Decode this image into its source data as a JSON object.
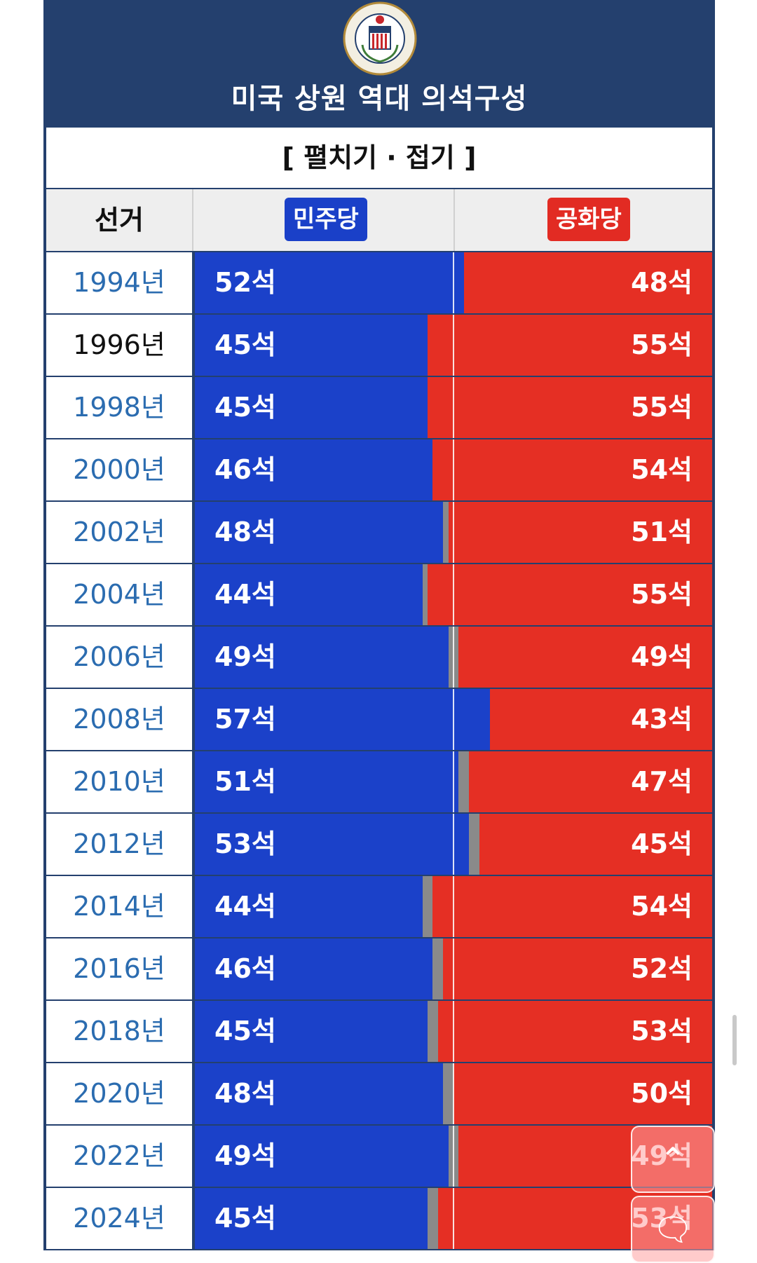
{
  "header": {
    "title": "미국 상원 역대 의석구성",
    "seal": "United States Senate seal",
    "seal_text": "UNITED STATES SENATE"
  },
  "toggle_label": "[ 펼치기 · 접기 ]",
  "columns": {
    "election": "선거",
    "dem": "민주당",
    "rep": "공화당"
  },
  "colors": {
    "dem": "#1b41c9",
    "rep": "#e52f24",
    "other": "#8a8a8a",
    "header_bg": "#24406e"
  },
  "rows": [
    {
      "year": "1994년",
      "dem": "52석",
      "rep": "48석",
      "dem_seats": 52,
      "other_seats": 0,
      "rep_seats": 48
    },
    {
      "year": "1996년",
      "dem": "45석",
      "rep": "55석",
      "dem_seats": 45,
      "other_seats": 0,
      "rep_seats": 55
    },
    {
      "year": "1998년",
      "dem": "45석",
      "rep": "55석",
      "dem_seats": 45,
      "other_seats": 0,
      "rep_seats": 55
    },
    {
      "year": "2000년",
      "dem": "46석",
      "rep": "54석",
      "dem_seats": 46,
      "other_seats": 0,
      "rep_seats": 54
    },
    {
      "year": "2002년",
      "dem": "48석",
      "rep": "51석",
      "dem_seats": 48,
      "other_seats": 1,
      "rep_seats": 51
    },
    {
      "year": "2004년",
      "dem": "44석",
      "rep": "55석",
      "dem_seats": 44,
      "other_seats": 1,
      "rep_seats": 55
    },
    {
      "year": "2006년",
      "dem": "49석",
      "rep": "49석",
      "dem_seats": 49,
      "other_seats": 2,
      "rep_seats": 49
    },
    {
      "year": "2008년",
      "dem": "57석",
      "rep": "43석",
      "dem_seats": 57,
      "other_seats": 0,
      "rep_seats": 43
    },
    {
      "year": "2010년",
      "dem": "51석",
      "rep": "47석",
      "dem_seats": 51,
      "other_seats": 2,
      "rep_seats": 47
    },
    {
      "year": "2012년",
      "dem": "53석",
      "rep": "45석",
      "dem_seats": 53,
      "other_seats": 2,
      "rep_seats": 45
    },
    {
      "year": "2014년",
      "dem": "44석",
      "rep": "54석",
      "dem_seats": 44,
      "other_seats": 2,
      "rep_seats": 54
    },
    {
      "year": "2016년",
      "dem": "46석",
      "rep": "52석",
      "dem_seats": 46,
      "other_seats": 2,
      "rep_seats": 52
    },
    {
      "year": "2018년",
      "dem": "45석",
      "rep": "53석",
      "dem_seats": 45,
      "other_seats": 2,
      "rep_seats": 53
    },
    {
      "year": "2020년",
      "dem": "48석",
      "rep": "50석",
      "dem_seats": 48,
      "other_seats": 2,
      "rep_seats": 50
    },
    {
      "year": "2022년",
      "dem": "49석",
      "rep": "49석",
      "dem_seats": 49,
      "other_seats": 2,
      "rep_seats": 49
    },
    {
      "year": "2024년",
      "dem": "45석",
      "rep": "53석",
      "dem_seats": 45,
      "other_seats": 2,
      "rep_seats": 53
    }
  ],
  "year_colors": [
    "link",
    "black",
    "link",
    "link",
    "link",
    "link",
    "link",
    "link",
    "link",
    "link",
    "link",
    "link",
    "link",
    "link",
    "link",
    "link"
  ],
  "floating": {
    "up_icon": "chevron-up-icon",
    "chat_icon": "chat-bubble-icon"
  }
}
